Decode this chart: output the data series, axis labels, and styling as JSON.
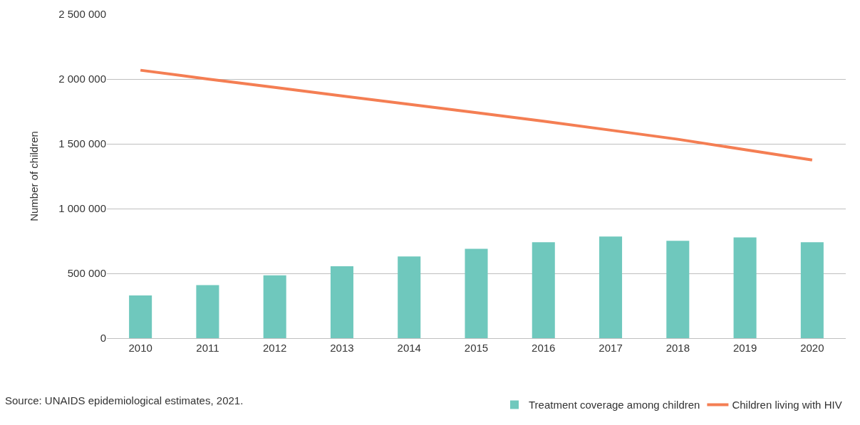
{
  "chart_data": {
    "type": "bar",
    "ylabel": "Number of children",
    "categories": [
      "2010",
      "2011",
      "2012",
      "2013",
      "2014",
      "2015",
      "2016",
      "2017",
      "2018",
      "2019",
      "2020"
    ],
    "series": [
      {
        "name": "Treatment coverage among children",
        "color": "#6fc8bd",
        "values": [
          330000,
          410000,
          485000,
          555000,
          630000,
          690000,
          740000,
          785000,
          752000,
          778000,
          741000
        ]
      },
      {
        "name": "Children living with HIV",
        "type": "line",
        "color": "#f47e53",
        "values": [
          2068000,
          2000000,
          1935000,
          1870000,
          1805000,
          1740000,
          1675000,
          1605000,
          1535000,
          1455000,
          1375000
        ]
      }
    ],
    "ylim": [
      0,
      2500000
    ],
    "yticks": [
      {
        "value": 0,
        "label": "0"
      },
      {
        "value": 500000,
        "label": "500 000"
      },
      {
        "value": 1000000,
        "label": "1 000 000"
      },
      {
        "value": 1500000,
        "label": "1 500 000"
      },
      {
        "value": 2000000,
        "label": "2 000 000"
      },
      {
        "value": 2500000,
        "label": "2 500 000"
      }
    ],
    "grid": "y",
    "legend": "bottom right",
    "annotations": [
      "Source: UNAIDS epidemiological estimates, 2021."
    ]
  }
}
